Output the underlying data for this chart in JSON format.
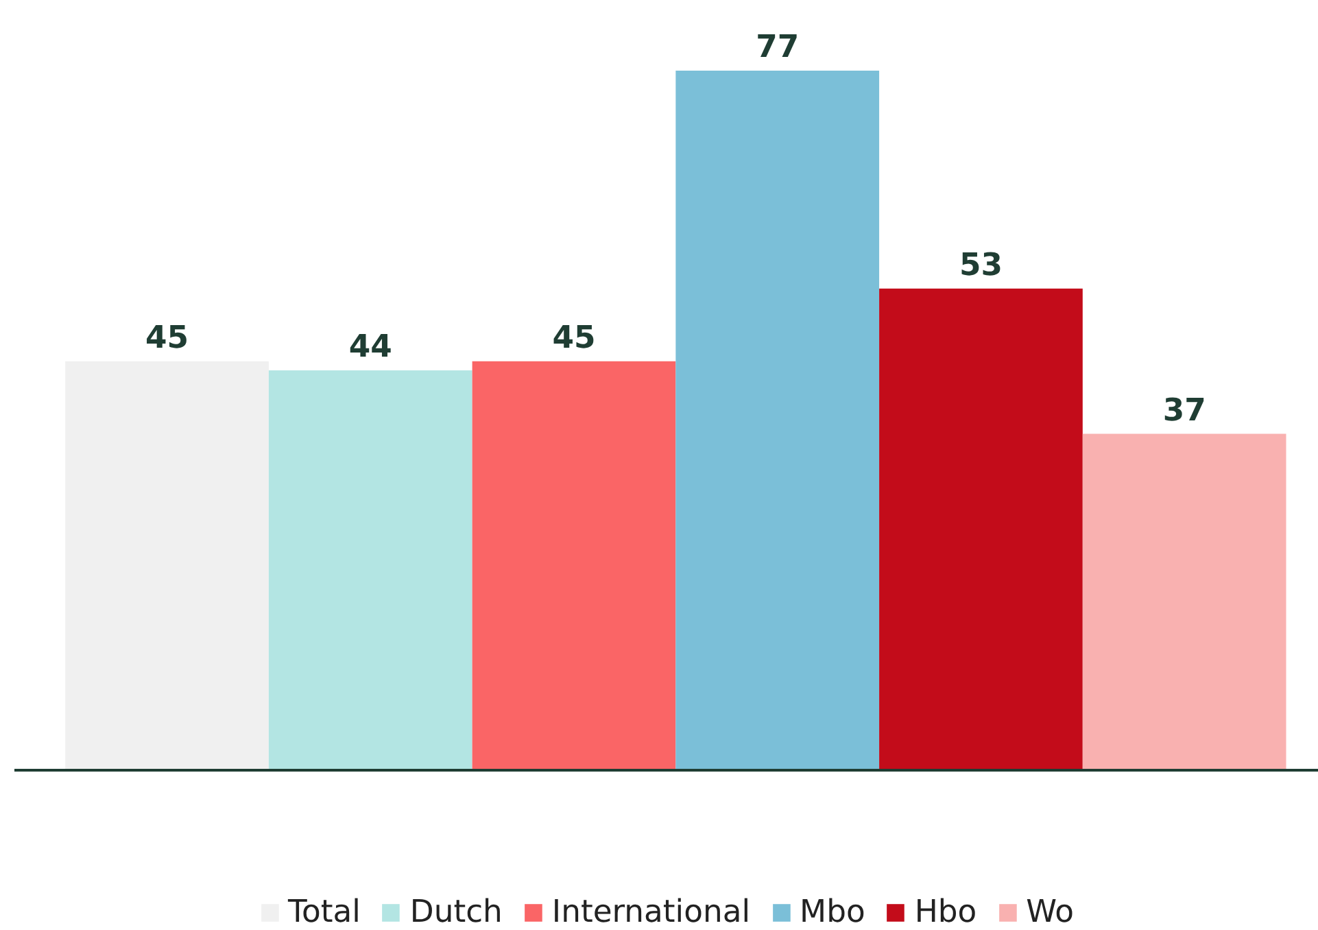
{
  "chart_data": {
    "type": "bar",
    "categories": [
      null
    ],
    "series": [
      {
        "name": "Total",
        "color": "#f0f0f0",
        "values": [
          45
        ]
      },
      {
        "name": "Dutch",
        "color": "#b3e5e3",
        "values": [
          44
        ]
      },
      {
        "name": "International",
        "color": "#fa6566",
        "values": [
          45
        ]
      },
      {
        "name": "Mbo",
        "color": "#7bbfd8",
        "values": [
          77
        ]
      },
      {
        "name": "Hbo",
        "color": "#c30c1a",
        "values": [
          53
        ]
      },
      {
        "name": "Wo",
        "color": "#f9b1b0",
        "values": [
          37
        ]
      }
    ],
    "data_labels": true,
    "legend": "bottom",
    "grid": false
  }
}
